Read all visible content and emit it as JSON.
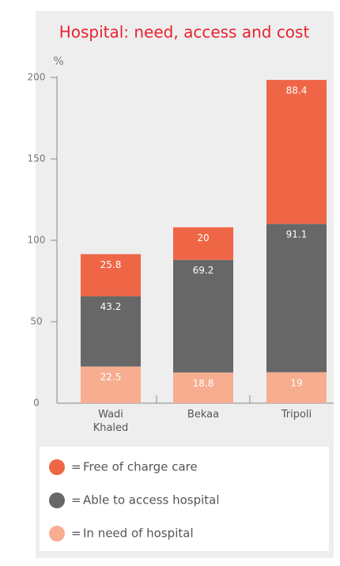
{
  "chart_data": {
    "type": "stacked_bar",
    "title": "Hospital: need, access and cost",
    "y_label": "%",
    "categories": [
      "Wadi Khaled",
      "Bekaa",
      "Tripoli"
    ],
    "series": [
      {
        "name": "In need of hospital",
        "color": "#f7ad8f",
        "values": [
          22.5,
          18.8,
          19
        ]
      },
      {
        "name": "Able to access hospital",
        "color": "#676767",
        "values": [
          43.2,
          69.2,
          91.1
        ]
      },
      {
        "name": "Free of charge care",
        "color": "#ef6646",
        "values": [
          25.8,
          20,
          88.4
        ]
      }
    ],
    "legend_separator": "=",
    "ylim": [
      0,
      200
    ],
    "yticks": [
      0,
      50,
      100,
      150,
      200
    ]
  }
}
